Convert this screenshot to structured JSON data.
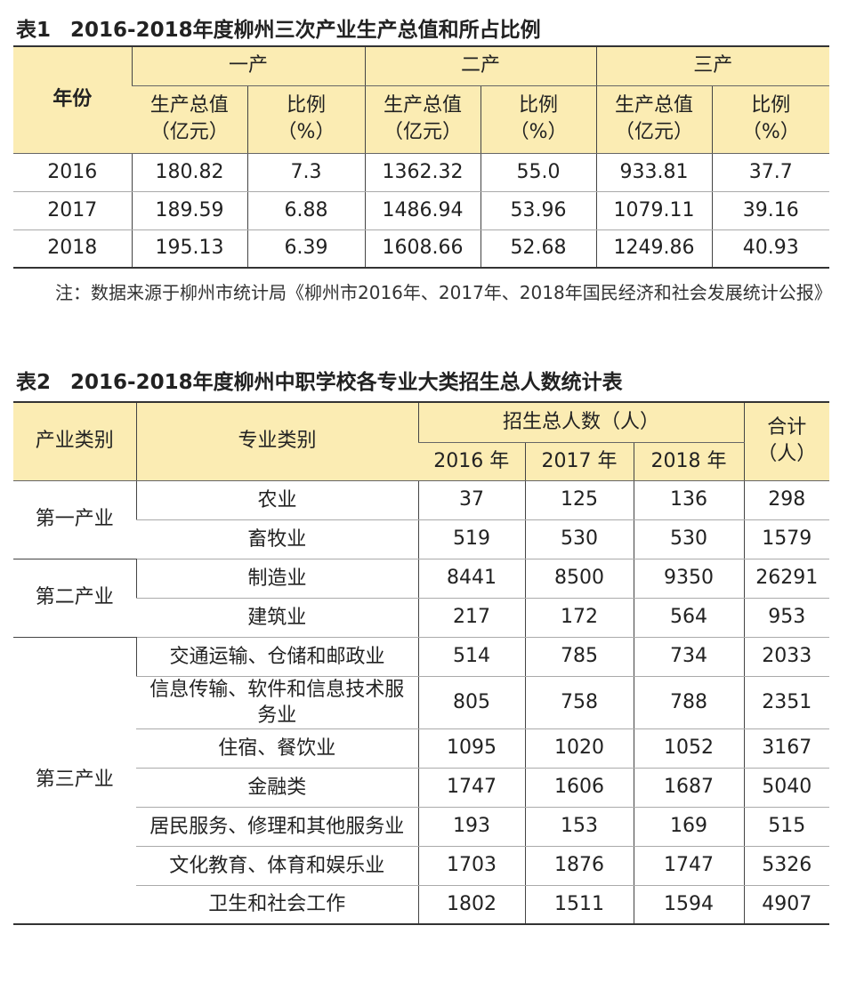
{
  "table1": {
    "label": "表1",
    "title": "2016-2018年度柳州三次产业生产总值和所占比例",
    "year_header": "年份",
    "groups": [
      "一产",
      "二产",
      "三产"
    ],
    "subheaders": [
      [
        "生产总值",
        "（亿元）"
      ],
      [
        "比例",
        "（%）"
      ],
      [
        "生产总值",
        "（亿元）"
      ],
      [
        "比例",
        "（%）"
      ],
      [
        "生产总值",
        "（亿元）"
      ],
      [
        "比例",
        "（%）"
      ]
    ],
    "rows": [
      [
        "2016",
        "180.82",
        "7.3",
        "1362.32",
        "55.0",
        "933.81",
        "37.7"
      ],
      [
        "2017",
        "189.59",
        "6.88",
        "1486.94",
        "53.96",
        "1079.11",
        "39.16"
      ],
      [
        "2018",
        "195.13",
        "6.39",
        "1608.66",
        "52.68",
        "1249.86",
        "40.93"
      ]
    ],
    "note": "注：数据来源于柳州市统计局《柳州市2016年、2017年、2018年国民经济和社会发展统计公报》"
  },
  "table2": {
    "label": "表2",
    "title": "2016-2018年度柳州中职学校各专业大类招生总人数统计表",
    "header": {
      "industry": "产业类别",
      "specialty": "专业类别",
      "enrollment": "招生总人数（人）",
      "years": [
        "2016 年",
        "2017 年",
        "2018 年"
      ],
      "total": [
        "合计",
        "（人）"
      ]
    },
    "groups": [
      {
        "name": "第一产业",
        "rows": [
          [
            "农业",
            "37",
            "125",
            "136",
            "298"
          ],
          [
            "畜牧业",
            "519",
            "530",
            "530",
            "1579"
          ]
        ]
      },
      {
        "name": "第二产业",
        "rows": [
          [
            "制造业",
            "8441",
            "8500",
            "9350",
            "26291"
          ],
          [
            "建筑业",
            "217",
            "172",
            "564",
            "953"
          ]
        ]
      },
      {
        "name": "第三产业",
        "rows": [
          [
            "交通运输、仓储和邮政业",
            "514",
            "785",
            "734",
            "2033"
          ],
          [
            "信息传输、软件和信息技术服务业",
            "805",
            "758",
            "788",
            "2351"
          ],
          [
            "住宿、餐饮业",
            "1095",
            "1020",
            "1052",
            "3167"
          ],
          [
            "金融类",
            "1747",
            "1606",
            "1687",
            "5040"
          ],
          [
            "居民服务、修理和其他服务业",
            "193",
            "153",
            "169",
            "515"
          ],
          [
            "文化教育、体育和娱乐业",
            "1703",
            "1876",
            "1747",
            "5326"
          ],
          [
            "卫生和社会工作",
            "1802",
            "1511",
            "1594",
            "4907"
          ]
        ]
      }
    ]
  }
}
